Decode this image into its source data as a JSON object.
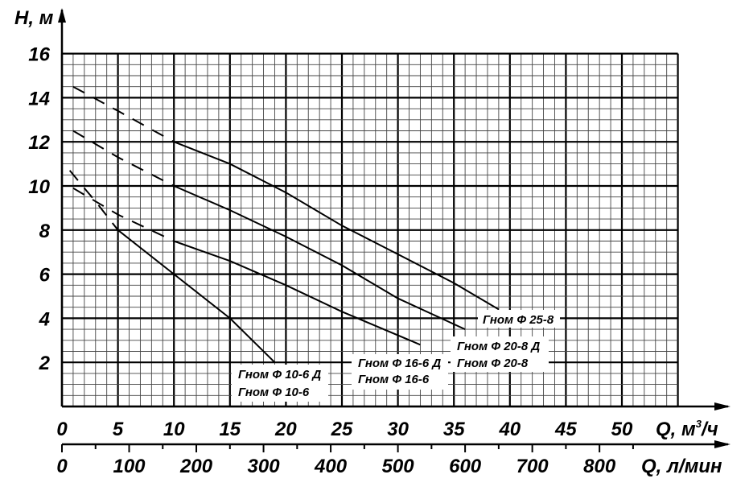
{
  "chart_data": {
    "type": "line",
    "ylabel": "H, м",
    "xlabel": "Q, м³/ч",
    "xlabel_main": "Q, м",
    "xlabel_sup": "3",
    "xlabel_tail": "/ч",
    "x2label": "Q, л/мин",
    "xlim": [
      0,
      55
    ],
    "ylim": [
      0,
      16
    ],
    "grid": true,
    "x_ticks": [
      0,
      5,
      10,
      15,
      20,
      25,
      30,
      35,
      40,
      45,
      50
    ],
    "y_ticks": [
      2,
      4,
      6,
      8,
      10,
      12,
      14,
      16
    ],
    "x2_ticks": [
      0,
      100,
      200,
      300,
      400,
      500,
      600,
      700,
      800
    ],
    "series": [
      {
        "labels": [
          "Гном Ф 25-8"
        ],
        "dashed_until": 10,
        "points": [
          [
            1,
            14.5
          ],
          [
            5,
            13.4
          ],
          [
            10,
            12
          ],
          [
            15,
            11
          ],
          [
            20,
            9.7
          ],
          [
            25,
            8.2
          ],
          [
            30,
            6.9
          ],
          [
            35,
            5.6
          ],
          [
            39,
            4.4
          ]
        ]
      },
      {
        "labels": [
          "Гном Ф 20-8 Д",
          "Гном Ф 20-8"
        ],
        "dashed_until": 10,
        "points": [
          [
            1,
            12.5
          ],
          [
            5,
            11.3
          ],
          [
            10,
            10
          ],
          [
            15,
            8.9
          ],
          [
            20,
            7.7
          ],
          [
            25,
            6.4
          ],
          [
            30,
            4.9
          ],
          [
            36,
            3.5
          ]
        ]
      },
      {
        "labels": [
          "Гном Ф 16-6 Д",
          "Гном Ф 16-6"
        ],
        "dashed_until": 10,
        "points": [
          [
            1,
            9.9
          ],
          [
            5,
            8.7
          ],
          [
            10,
            7.5
          ],
          [
            15,
            6.6
          ],
          [
            20,
            5.5
          ],
          [
            25,
            4.3
          ],
          [
            32,
            2.8
          ]
        ]
      },
      {
        "labels": [
          "Гном Ф 10-6 Д",
          "Гном Ф 10-6"
        ],
        "dashed_until": 5,
        "points": [
          [
            0.7,
            10.7
          ],
          [
            2,
            9.9
          ],
          [
            3,
            9.3
          ],
          [
            5,
            8
          ],
          [
            10,
            6
          ],
          [
            15,
            4
          ],
          [
            19,
            2
          ]
        ]
      }
    ]
  }
}
